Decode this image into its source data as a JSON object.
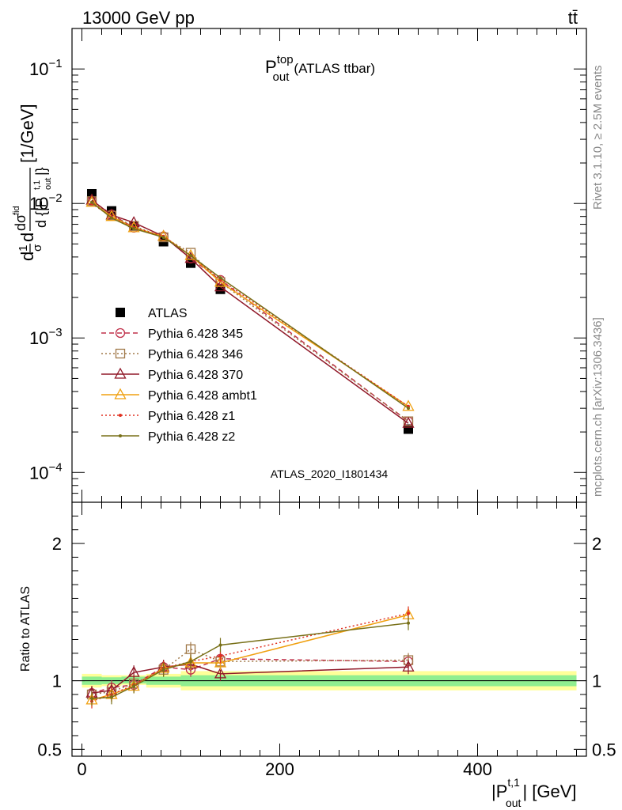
{
  "header": {
    "left": "13000 GeV pp",
    "right": "tt̄"
  },
  "side_labels": {
    "rivet": "Rivet 3.1.10, ≥ 2.5M events",
    "mcplots": "mcplots.cern.ch [arXiv:1306.3436]"
  },
  "watermark": "ATLAS_2020_I1801434",
  "colors": {
    "ATLAS": "#000000",
    "p345": "#c0304a",
    "p346": "#a07848",
    "p370": "#901828",
    "ambt1": "#f0a010",
    "z1": "#e03020",
    "z2": "#787018",
    "band_outer": "#ffff99",
    "band_inner": "#90ee90"
  },
  "chart_data": [
    {
      "panel": "main",
      "type": "line",
      "title_main": "P",
      "title_sup": "top",
      "title_sub": "out",
      "title_suffix": "(ATLAS ttbar)",
      "ylabel_text": "d σ/d {|P_out^t,1|} [1/GeV] (normalised)",
      "y_scale": "log",
      "xlim": [
        -10,
        510
      ],
      "ylim": [
        6e-05,
        0.2
      ],
      "y_ticks": [
        {
          "value": 0.1,
          "base": "10",
          "exp": "−1"
        },
        {
          "value": 0.01,
          "base": "10",
          "exp": "−2"
        },
        {
          "value": 0.001,
          "base": "10",
          "exp": "−3"
        },
        {
          "value": 0.0001,
          "base": "10",
          "exp": "−4"
        }
      ],
      "legend_position": "middle-left",
      "series": [
        {
          "name": "ATLAS",
          "style": "data",
          "x": [
            10,
            30,
            52.5,
            82.5,
            110,
            140,
            330
          ],
          "y": [
            0.0118,
            0.0088,
            0.0068,
            0.0052,
            0.0036,
            0.0023,
            0.00021
          ]
        },
        {
          "name": "Pythia 6.428 345",
          "style": "dashed",
          "marker": "circle",
          "x": [
            10,
            30,
            52.5,
            82.5,
            110,
            140,
            330
          ],
          "y": [
            0.0105,
            0.0083,
            0.0066,
            0.0057,
            0.0039,
            0.0027,
            0.00024
          ]
        },
        {
          "name": "Pythia 6.428 346",
          "style": "dotted",
          "marker": "square",
          "x": [
            10,
            30,
            52.5,
            82.5,
            110,
            140,
            330
          ],
          "y": [
            0.0104,
            0.0081,
            0.0068,
            0.0056,
            0.0043,
            0.0026,
            0.00024
          ]
        },
        {
          "name": "Pythia 6.428 370",
          "style": "solid",
          "marker": "triangle",
          "x": [
            10,
            30,
            52.5,
            82.5,
            110,
            140,
            330
          ],
          "y": [
            0.0106,
            0.0082,
            0.0072,
            0.0057,
            0.0039,
            0.0024,
            0.000232
          ]
        },
        {
          "name": "Pythia 6.428 ambt1",
          "style": "solid",
          "marker": "triangle",
          "x": [
            10,
            30,
            52.5,
            82.5,
            110,
            140,
            330
          ],
          "y": [
            0.0102,
            0.008,
            0.0066,
            0.0057,
            0.0041,
            0.0026,
            0.00031
          ]
        },
        {
          "name": "Pythia 6.428 z1",
          "style": "dotted",
          "marker": "dot",
          "x": [
            10,
            30,
            52.5,
            82.5,
            110,
            140,
            330
          ],
          "y": [
            0.01,
            0.0079,
            0.0066,
            0.0057,
            0.0041,
            0.0027,
            0.00031
          ]
        },
        {
          "name": "Pythia 6.428 z2",
          "style": "solid",
          "marker": "dot",
          "x": [
            10,
            30,
            52.5,
            82.5,
            110,
            140,
            330
          ],
          "y": [
            0.0102,
            0.0078,
            0.0065,
            0.0056,
            0.0041,
            0.0028,
            0.0003
          ]
        }
      ]
    },
    {
      "panel": "ratio",
      "type": "line",
      "ylabel": "Ratio to ATLAS",
      "xlabel_main": "|P",
      "xlabel_sup": "t,1",
      "xlabel_sub": "out",
      "xlabel_suffix": "| [GeV]",
      "xlim": [
        -10,
        510
      ],
      "ylim": [
        0.45,
        2.3
      ],
      "y_ticks": [
        {
          "value": 0.5,
          "label": "0.5"
        },
        {
          "value": 1,
          "label": "1"
        },
        {
          "value": 2,
          "label": "2"
        }
      ],
      "x_ticks": [
        {
          "value": 0,
          "label": "0"
        },
        {
          "value": 200,
          "label": "200"
        },
        {
          "value": 400,
          "label": "400"
        }
      ],
      "bands": {
        "edges": [
          0,
          20,
          40,
          65,
          100,
          120,
          160,
          500
        ],
        "outer": [
          [
            0.95,
            1.05
          ],
          [
            0.96,
            1.04
          ],
          [
            0.97,
            1.04
          ],
          [
            0.95,
            1.05
          ],
          [
            0.93,
            1.07
          ],
          [
            0.93,
            1.07
          ],
          [
            0.93,
            1.07
          ]
        ],
        "inner": [
          [
            0.97,
            1.03
          ],
          [
            0.975,
            1.025
          ],
          [
            0.98,
            1.03
          ],
          [
            0.97,
            1.03
          ],
          [
            0.96,
            1.04
          ],
          [
            0.96,
            1.04
          ],
          [
            0.96,
            1.04
          ]
        ]
      },
      "series": [
        {
          "name": "Pythia 6.428 345",
          "x": [
            10,
            30,
            52.5,
            82.5,
            110,
            140,
            330
          ],
          "y": [
            0.91,
            0.95,
            0.97,
            1.1,
            1.08,
            1.16,
            1.14
          ]
        },
        {
          "name": "Pythia 6.428 346",
          "x": [
            10,
            30,
            52.5,
            82.5,
            110,
            140,
            330
          ],
          "y": [
            0.9,
            0.92,
            0.98,
            1.08,
            1.23,
            1.14,
            1.15
          ]
        },
        {
          "name": "Pythia 6.428 370",
          "x": [
            10,
            30,
            52.5,
            82.5,
            110,
            140,
            330
          ],
          "y": [
            0.91,
            0.93,
            1.06,
            1.1,
            1.12,
            1.05,
            1.1
          ]
        },
        {
          "name": "Pythia 6.428 ambt1",
          "x": [
            10,
            30,
            52.5,
            82.5,
            110,
            140,
            330
          ],
          "y": [
            0.86,
            0.9,
            0.96,
            1.09,
            1.13,
            1.13,
            1.48
          ]
        },
        {
          "name": "Pythia 6.428 z1",
          "x": [
            10,
            30,
            52.5,
            82.5,
            110,
            140,
            330
          ],
          "y": [
            0.85,
            0.9,
            0.97,
            1.09,
            1.14,
            1.18,
            1.49
          ]
        },
        {
          "name": "Pythia 6.428 z2",
          "x": [
            10,
            30,
            52.5,
            82.5,
            110,
            140,
            330
          ],
          "y": [
            0.87,
            0.88,
            0.96,
            1.08,
            1.14,
            1.26,
            1.42
          ]
        }
      ]
    }
  ]
}
